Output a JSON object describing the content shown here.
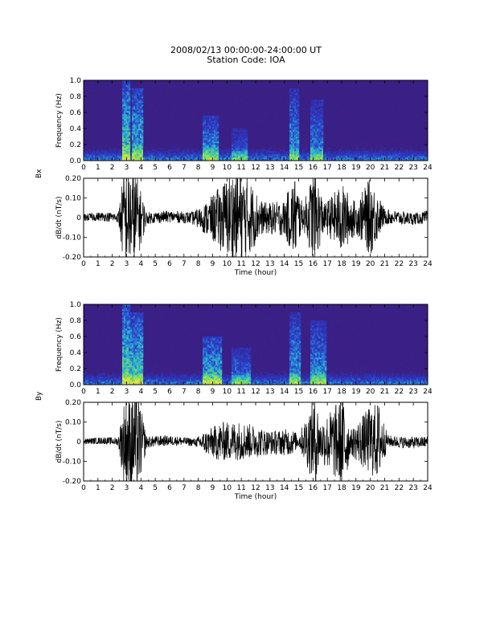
{
  "header": {
    "line1": "2008/02/13 00:00:00-24:00:00 UT",
    "line2": "Station Code: IOA"
  },
  "chart_data": [
    {
      "type": "heatmap",
      "channel": "Bx",
      "ylabel": "Frequency (Hz)",
      "xlim": [
        0,
        24
      ],
      "ylim": [
        0.0,
        1.0
      ],
      "x_ticks": [
        "0",
        "1",
        "2",
        "3",
        "4",
        "5",
        "6",
        "7",
        "8",
        "9",
        "10",
        "11",
        "12",
        "13",
        "14",
        "15",
        "16",
        "17",
        "18",
        "19",
        "20",
        "21",
        "22",
        "23",
        "24"
      ],
      "y_ticks": [
        "0.0",
        "0.2",
        "0.4",
        "0.6",
        "0.8",
        "1.0"
      ],
      "colors": {
        "background": "#3a1f84",
        "low": "#2b3cc8",
        "mid": "#29b0d8",
        "high": "#6fe060",
        "peak": "#f0e040"
      },
      "bursts": [
        {
          "x": [
            2.8,
            3.1
          ],
          "freq_max": 1.0,
          "intensity": 0.9
        },
        {
          "x": [
            3.5,
            4.0
          ],
          "freq_max": 0.9,
          "intensity": 0.8
        },
        {
          "x": [
            8.5,
            9.3
          ],
          "freq_max": 0.55,
          "intensity": 0.7
        },
        {
          "x": [
            10.5,
            11.3
          ],
          "freq_max": 0.4,
          "intensity": 0.5
        },
        {
          "x": [
            14.5,
            14.9
          ],
          "freq_max": 0.9,
          "intensity": 0.65
        },
        {
          "x": [
            16.0,
            16.6
          ],
          "freq_max": 0.75,
          "intensity": 0.6
        }
      ]
    },
    {
      "type": "line",
      "channel": "Bx",
      "xlabel": "Time (hour)",
      "ylabel": "dB/dt (nT/s)",
      "xlim": [
        0,
        24
      ],
      "ylim": [
        -0.2,
        0.2
      ],
      "x_ticks": [
        "0",
        "1",
        "2",
        "3",
        "4",
        "5",
        "6",
        "7",
        "8",
        "9",
        "10",
        "11",
        "12",
        "13",
        "14",
        "15",
        "16",
        "17",
        "18",
        "19",
        "20",
        "21",
        "22",
        "23",
        "24"
      ],
      "y_ticks": [
        "-0.20",
        "-0.10",
        "0",
        "0.10",
        "0.20"
      ],
      "envelope": [
        {
          "x": 0,
          "a": 0.02
        },
        {
          "x": 2.4,
          "a": 0.025
        },
        {
          "x": 2.8,
          "a": 0.25
        },
        {
          "x": 3.6,
          "a": 0.25
        },
        {
          "x": 4.4,
          "a": 0.03
        },
        {
          "x": 7.5,
          "a": 0.03
        },
        {
          "x": 8.2,
          "a": 0.06
        },
        {
          "x": 9.0,
          "a": 0.12
        },
        {
          "x": 10.5,
          "a": 0.25
        },
        {
          "x": 11.5,
          "a": 0.2
        },
        {
          "x": 12.5,
          "a": 0.08
        },
        {
          "x": 14.0,
          "a": 0.09
        },
        {
          "x": 14.7,
          "a": 0.22
        },
        {
          "x": 15.3,
          "a": 0.06
        },
        {
          "x": 16.1,
          "a": 0.25
        },
        {
          "x": 16.8,
          "a": 0.07
        },
        {
          "x": 18.0,
          "a": 0.18
        },
        {
          "x": 19.0,
          "a": 0.08
        },
        {
          "x": 20.0,
          "a": 0.2
        },
        {
          "x": 21.0,
          "a": 0.04
        },
        {
          "x": 23.5,
          "a": 0.03
        },
        {
          "x": 24,
          "a": 0.04
        }
      ]
    },
    {
      "type": "heatmap",
      "channel": "By",
      "ylabel": "Frequency (Hz)",
      "xlim": [
        0,
        24
      ],
      "ylim": [
        0.0,
        1.0
      ],
      "x_ticks": [
        "0",
        "1",
        "2",
        "3",
        "4",
        "5",
        "6",
        "7",
        "8",
        "9",
        "10",
        "11",
        "12",
        "13",
        "14",
        "15",
        "16",
        "17",
        "18",
        "19",
        "20",
        "21",
        "22",
        "23",
        "24"
      ],
      "y_ticks": [
        "0.0",
        "0.2",
        "0.4",
        "0.6",
        "0.8",
        "1.0"
      ],
      "colors": {
        "background": "#3a1f84",
        "low": "#2b3cc8",
        "mid": "#29b0d8",
        "high": "#6fe060",
        "peak": "#f0e040"
      },
      "bursts": [
        {
          "x": [
            2.8,
            3.1
          ],
          "freq_max": 1.0,
          "intensity": 0.95
        },
        {
          "x": [
            3.4,
            4.0
          ],
          "freq_max": 0.9,
          "intensity": 0.85
        },
        {
          "x": [
            8.4,
            9.5
          ],
          "freq_max": 0.6,
          "intensity": 0.8
        },
        {
          "x": [
            10.5,
            11.5
          ],
          "freq_max": 0.45,
          "intensity": 0.55
        },
        {
          "x": [
            14.5,
            15.0
          ],
          "freq_max": 0.9,
          "intensity": 0.65
        },
        {
          "x": [
            16.0,
            16.8
          ],
          "freq_max": 0.8,
          "intensity": 0.65
        }
      ]
    },
    {
      "type": "line",
      "channel": "By",
      "xlabel": "Time (hour)",
      "ylabel": "dB/dt (nT/s)",
      "xlim": [
        0,
        24
      ],
      "ylim": [
        -0.2,
        0.2
      ],
      "x_ticks": [
        "0",
        "1",
        "2",
        "3",
        "4",
        "5",
        "6",
        "7",
        "8",
        "9",
        "10",
        "11",
        "12",
        "13",
        "14",
        "15",
        "16",
        "17",
        "18",
        "19",
        "20",
        "21",
        "22",
        "23",
        "24"
      ],
      "y_ticks": [
        "-0.20",
        "-0.10",
        "0",
        "0.10",
        "0.20"
      ],
      "envelope": [
        {
          "x": 0,
          "a": 0.015
        },
        {
          "x": 2.4,
          "a": 0.02
        },
        {
          "x": 2.9,
          "a": 0.25
        },
        {
          "x": 3.8,
          "a": 0.25
        },
        {
          "x": 4.4,
          "a": 0.03
        },
        {
          "x": 7.8,
          "a": 0.02
        },
        {
          "x": 8.3,
          "a": 0.05
        },
        {
          "x": 9.5,
          "a": 0.1
        },
        {
          "x": 11.0,
          "a": 0.1
        },
        {
          "x": 13.0,
          "a": 0.06
        },
        {
          "x": 14.5,
          "a": 0.07
        },
        {
          "x": 15.0,
          "a": 0.03
        },
        {
          "x": 16.2,
          "a": 0.25
        },
        {
          "x": 16.5,
          "a": 0.1
        },
        {
          "x": 18.2,
          "a": 0.25
        },
        {
          "x": 18.6,
          "a": 0.06
        },
        {
          "x": 20.0,
          "a": 0.18
        },
        {
          "x": 20.6,
          "a": 0.2
        },
        {
          "x": 21.2,
          "a": 0.03
        },
        {
          "x": 24,
          "a": 0.03
        }
      ]
    }
  ]
}
